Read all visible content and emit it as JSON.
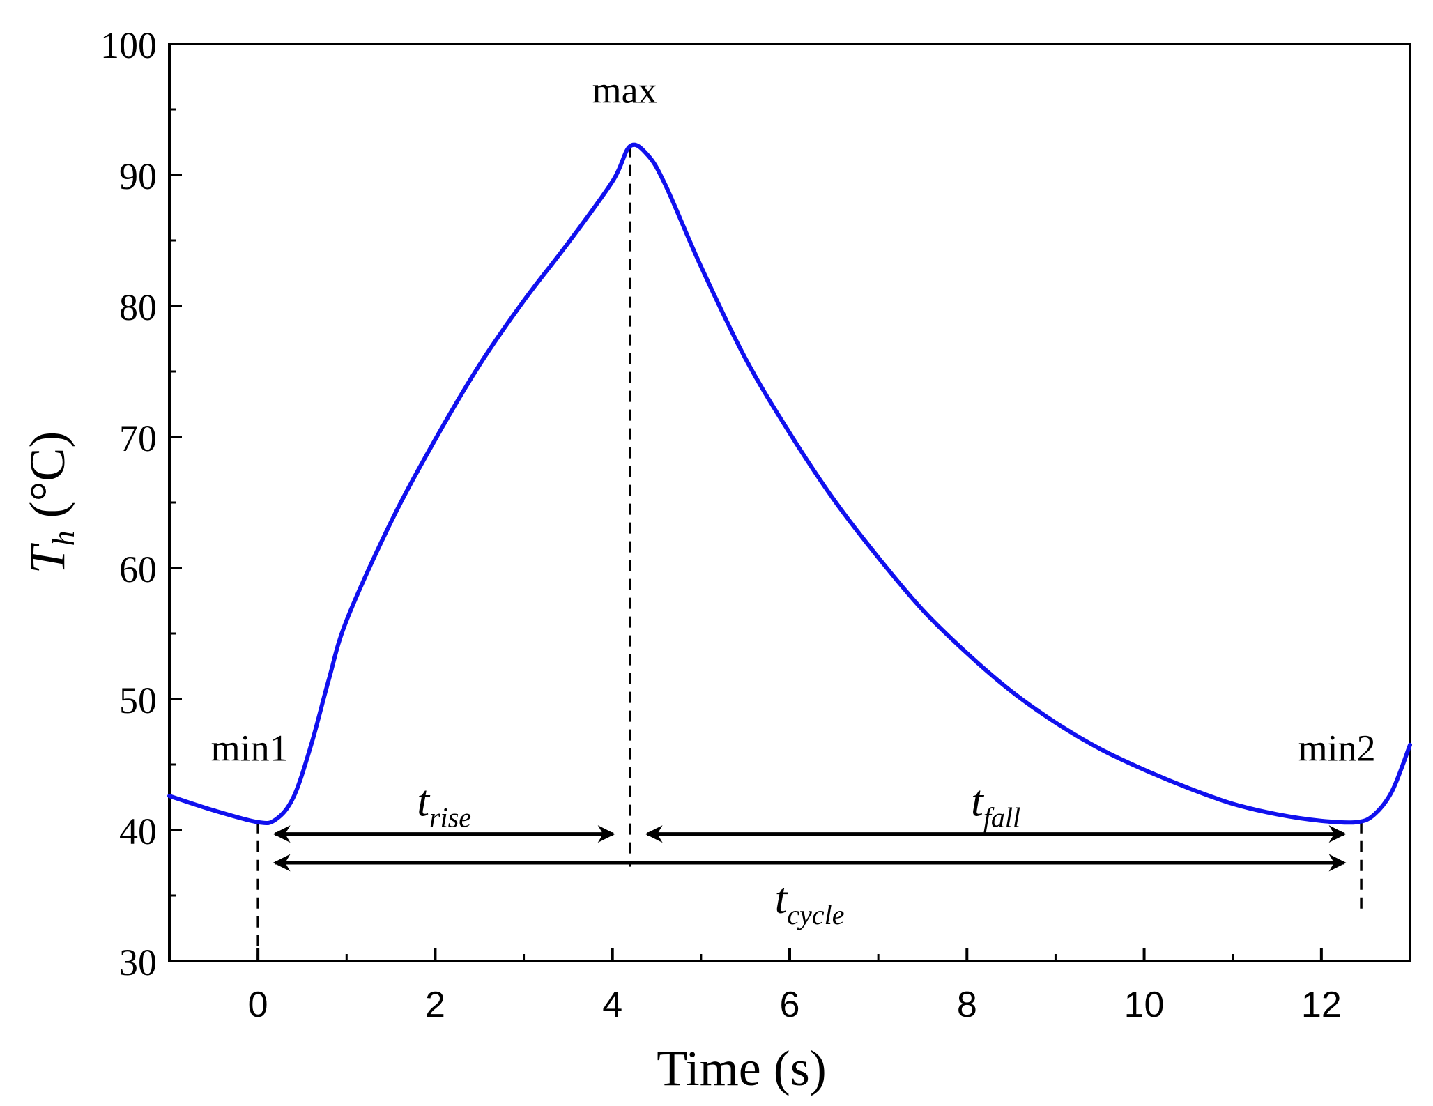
{
  "chart_data": {
    "type": "line",
    "title": "",
    "xlabel": "Time (s)",
    "ylabel_var": "T",
    "ylabel_sub": "h",
    "ylabel_unit": " (°C)",
    "xlim": [
      -1,
      13
    ],
    "ylim": [
      30,
      100
    ],
    "xticks": [
      0,
      2,
      4,
      6,
      8,
      10,
      12
    ],
    "xticks_minor": [
      -1,
      1,
      3,
      5,
      7,
      9,
      11,
      13
    ],
    "yticks": [
      30,
      40,
      50,
      60,
      70,
      80,
      90,
      100
    ],
    "yticks_minor": [
      35,
      45,
      55,
      65,
      75,
      85,
      95
    ],
    "line_color": "#1010ee",
    "series": [
      {
        "name": "T_h",
        "x": [
          -1.0,
          -0.5,
          0.0,
          0.2,
          0.4,
          0.6,
          0.8,
          1.0,
          1.5,
          2.0,
          2.5,
          3.0,
          3.5,
          4.0,
          4.2,
          4.4,
          4.6,
          5.0,
          5.5,
          6.0,
          6.5,
          7.0,
          7.5,
          8.0,
          8.5,
          9.0,
          9.5,
          10.0,
          10.5,
          11.0,
          11.5,
          12.0,
          12.4,
          12.6,
          12.8,
          13.0
        ],
        "y": [
          42.6,
          41.5,
          40.6,
          40.8,
          42.5,
          46.5,
          51.5,
          56.0,
          63.5,
          69.8,
          75.5,
          80.4,
          84.8,
          89.5,
          92.2,
          91.5,
          89.2,
          83.0,
          76.0,
          70.3,
          65.2,
          60.8,
          56.8,
          53.5,
          50.6,
          48.2,
          46.2,
          44.6,
          43.2,
          42.0,
          41.2,
          40.7,
          40.6,
          41.2,
          43.0,
          46.5
        ]
      }
    ],
    "annotations": {
      "min1": {
        "label": "min1",
        "x": 0.0,
        "y": 40.6
      },
      "max": {
        "label": "max",
        "x": 4.2,
        "y": 92.2
      },
      "min2": {
        "label": "min2",
        "x": 12.45,
        "y": 40.6
      }
    },
    "intervals": [
      {
        "var": "t",
        "sub": "rise",
        "from": 0.0,
        "to": 4.2,
        "y": 39.7
      },
      {
        "var": "t",
        "sub": "fall",
        "from": 4.2,
        "to": 12.45,
        "y": 39.7
      },
      {
        "var": "t",
        "sub": "cycle",
        "from": 0.0,
        "to": 12.45,
        "y": 37.5
      }
    ]
  }
}
